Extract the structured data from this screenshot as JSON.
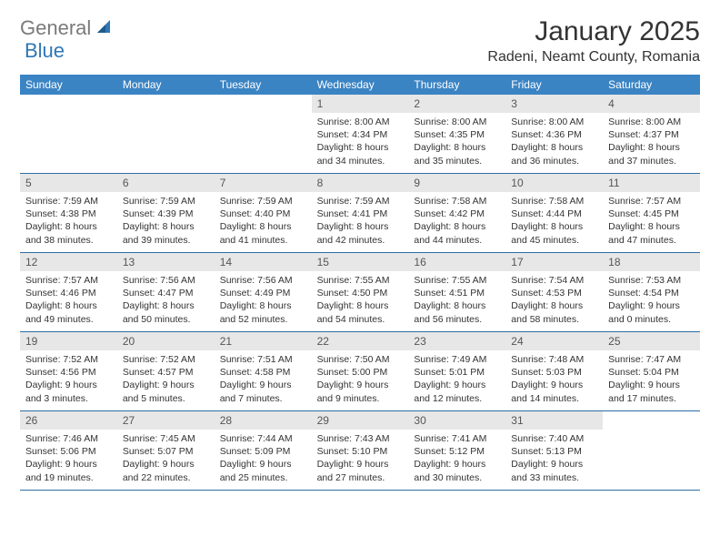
{
  "logo": {
    "part1": "General",
    "part2": "Blue"
  },
  "title": "January 2025",
  "location": "Radeni, Neamt County, Romania",
  "colors": {
    "header_bg": "#3b84c4",
    "header_text": "#ffffff",
    "daynum_bg": "#e7e7e7",
    "border": "#2f6da3",
    "logo_gray": "#7a7a7a",
    "logo_blue": "#2f77b5"
  },
  "weekdays": [
    "Sunday",
    "Monday",
    "Tuesday",
    "Wednesday",
    "Thursday",
    "Friday",
    "Saturday"
  ],
  "weeks": [
    [
      {
        "n": "",
        "l1": "",
        "l2": "",
        "l3": "",
        "l4": ""
      },
      {
        "n": "",
        "l1": "",
        "l2": "",
        "l3": "",
        "l4": ""
      },
      {
        "n": "",
        "l1": "",
        "l2": "",
        "l3": "",
        "l4": ""
      },
      {
        "n": "1",
        "l1": "Sunrise: 8:00 AM",
        "l2": "Sunset: 4:34 PM",
        "l3": "Daylight: 8 hours",
        "l4": "and 34 minutes."
      },
      {
        "n": "2",
        "l1": "Sunrise: 8:00 AM",
        "l2": "Sunset: 4:35 PM",
        "l3": "Daylight: 8 hours",
        "l4": "and 35 minutes."
      },
      {
        "n": "3",
        "l1": "Sunrise: 8:00 AM",
        "l2": "Sunset: 4:36 PM",
        "l3": "Daylight: 8 hours",
        "l4": "and 36 minutes."
      },
      {
        "n": "4",
        "l1": "Sunrise: 8:00 AM",
        "l2": "Sunset: 4:37 PM",
        "l3": "Daylight: 8 hours",
        "l4": "and 37 minutes."
      }
    ],
    [
      {
        "n": "5",
        "l1": "Sunrise: 7:59 AM",
        "l2": "Sunset: 4:38 PM",
        "l3": "Daylight: 8 hours",
        "l4": "and 38 minutes."
      },
      {
        "n": "6",
        "l1": "Sunrise: 7:59 AM",
        "l2": "Sunset: 4:39 PM",
        "l3": "Daylight: 8 hours",
        "l4": "and 39 minutes."
      },
      {
        "n": "7",
        "l1": "Sunrise: 7:59 AM",
        "l2": "Sunset: 4:40 PM",
        "l3": "Daylight: 8 hours",
        "l4": "and 41 minutes."
      },
      {
        "n": "8",
        "l1": "Sunrise: 7:59 AM",
        "l2": "Sunset: 4:41 PM",
        "l3": "Daylight: 8 hours",
        "l4": "and 42 minutes."
      },
      {
        "n": "9",
        "l1": "Sunrise: 7:58 AM",
        "l2": "Sunset: 4:42 PM",
        "l3": "Daylight: 8 hours",
        "l4": "and 44 minutes."
      },
      {
        "n": "10",
        "l1": "Sunrise: 7:58 AM",
        "l2": "Sunset: 4:44 PM",
        "l3": "Daylight: 8 hours",
        "l4": "and 45 minutes."
      },
      {
        "n": "11",
        "l1": "Sunrise: 7:57 AM",
        "l2": "Sunset: 4:45 PM",
        "l3": "Daylight: 8 hours",
        "l4": "and 47 minutes."
      }
    ],
    [
      {
        "n": "12",
        "l1": "Sunrise: 7:57 AM",
        "l2": "Sunset: 4:46 PM",
        "l3": "Daylight: 8 hours",
        "l4": "and 49 minutes."
      },
      {
        "n": "13",
        "l1": "Sunrise: 7:56 AM",
        "l2": "Sunset: 4:47 PM",
        "l3": "Daylight: 8 hours",
        "l4": "and 50 minutes."
      },
      {
        "n": "14",
        "l1": "Sunrise: 7:56 AM",
        "l2": "Sunset: 4:49 PM",
        "l3": "Daylight: 8 hours",
        "l4": "and 52 minutes."
      },
      {
        "n": "15",
        "l1": "Sunrise: 7:55 AM",
        "l2": "Sunset: 4:50 PM",
        "l3": "Daylight: 8 hours",
        "l4": "and 54 minutes."
      },
      {
        "n": "16",
        "l1": "Sunrise: 7:55 AM",
        "l2": "Sunset: 4:51 PM",
        "l3": "Daylight: 8 hours",
        "l4": "and 56 minutes."
      },
      {
        "n": "17",
        "l1": "Sunrise: 7:54 AM",
        "l2": "Sunset: 4:53 PM",
        "l3": "Daylight: 8 hours",
        "l4": "and 58 minutes."
      },
      {
        "n": "18",
        "l1": "Sunrise: 7:53 AM",
        "l2": "Sunset: 4:54 PM",
        "l3": "Daylight: 9 hours",
        "l4": "and 0 minutes."
      }
    ],
    [
      {
        "n": "19",
        "l1": "Sunrise: 7:52 AM",
        "l2": "Sunset: 4:56 PM",
        "l3": "Daylight: 9 hours",
        "l4": "and 3 minutes."
      },
      {
        "n": "20",
        "l1": "Sunrise: 7:52 AM",
        "l2": "Sunset: 4:57 PM",
        "l3": "Daylight: 9 hours",
        "l4": "and 5 minutes."
      },
      {
        "n": "21",
        "l1": "Sunrise: 7:51 AM",
        "l2": "Sunset: 4:58 PM",
        "l3": "Daylight: 9 hours",
        "l4": "and 7 minutes."
      },
      {
        "n": "22",
        "l1": "Sunrise: 7:50 AM",
        "l2": "Sunset: 5:00 PM",
        "l3": "Daylight: 9 hours",
        "l4": "and 9 minutes."
      },
      {
        "n": "23",
        "l1": "Sunrise: 7:49 AM",
        "l2": "Sunset: 5:01 PM",
        "l3": "Daylight: 9 hours",
        "l4": "and 12 minutes."
      },
      {
        "n": "24",
        "l1": "Sunrise: 7:48 AM",
        "l2": "Sunset: 5:03 PM",
        "l3": "Daylight: 9 hours",
        "l4": "and 14 minutes."
      },
      {
        "n": "25",
        "l1": "Sunrise: 7:47 AM",
        "l2": "Sunset: 5:04 PM",
        "l3": "Daylight: 9 hours",
        "l4": "and 17 minutes."
      }
    ],
    [
      {
        "n": "26",
        "l1": "Sunrise: 7:46 AM",
        "l2": "Sunset: 5:06 PM",
        "l3": "Daylight: 9 hours",
        "l4": "and 19 minutes."
      },
      {
        "n": "27",
        "l1": "Sunrise: 7:45 AM",
        "l2": "Sunset: 5:07 PM",
        "l3": "Daylight: 9 hours",
        "l4": "and 22 minutes."
      },
      {
        "n": "28",
        "l1": "Sunrise: 7:44 AM",
        "l2": "Sunset: 5:09 PM",
        "l3": "Daylight: 9 hours",
        "l4": "and 25 minutes."
      },
      {
        "n": "29",
        "l1": "Sunrise: 7:43 AM",
        "l2": "Sunset: 5:10 PM",
        "l3": "Daylight: 9 hours",
        "l4": "and 27 minutes."
      },
      {
        "n": "30",
        "l1": "Sunrise: 7:41 AM",
        "l2": "Sunset: 5:12 PM",
        "l3": "Daylight: 9 hours",
        "l4": "and 30 minutes."
      },
      {
        "n": "31",
        "l1": "Sunrise: 7:40 AM",
        "l2": "Sunset: 5:13 PM",
        "l3": "Daylight: 9 hours",
        "l4": "and 33 minutes."
      },
      {
        "n": "",
        "l1": "",
        "l2": "",
        "l3": "",
        "l4": ""
      }
    ]
  ]
}
